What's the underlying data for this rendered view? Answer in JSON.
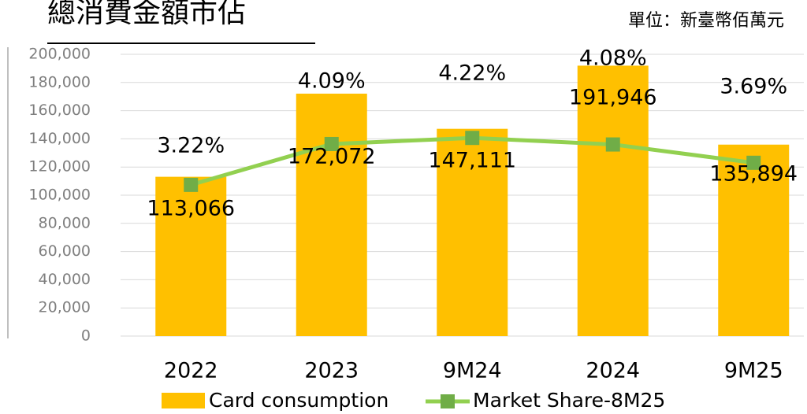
{
  "chart_data": {
    "type": "bar",
    "title": "總消費金額市佔",
    "subtitle": "單位：新臺幣佰萬元",
    "categories": [
      "2022",
      "2023",
      "9M24",
      "2024",
      "9M25"
    ],
    "series": [
      {
        "name": "Card consumption",
        "color": "#ffc000",
        "values": [
          113066,
          172072,
          147111,
          191946,
          135894
        ],
        "value_labels": [
          "113,066",
          "172,072",
          "147,111",
          "191,946",
          "135,894"
        ]
      },
      {
        "name": "Market Share-8M25",
        "type": "line",
        "axis": "y2",
        "color": "#92d050",
        "marker_color": "#70ad47",
        "values": [
          3.22,
          4.09,
          4.22,
          4.08,
          3.69
        ],
        "value_labels": [
          "3.22%",
          "4.09%",
          "4.22%",
          "4.08%",
          "3.69%"
        ]
      }
    ],
    "ylim": [
      0,
      200000
    ],
    "yticks": [
      0,
      {
        "value": 20000,
        "label": "20,000"
      },
      {
        "value": 40000,
        "label": "40,000"
      },
      {
        "value": 60000,
        "label": "60,000"
      },
      {
        "value": 80000,
        "label": "80,000"
      },
      {
        "value": 100000,
        "label": "100,000"
      },
      {
        "value": 120000,
        "label": "120,000"
      },
      {
        "value": 140000,
        "label": "140,000"
      },
      {
        "value": 160000,
        "label": "160,000"
      },
      {
        "value": 180000,
        "label": "180,000"
      },
      {
        "value": 200000,
        "label": "200,000"
      }
    ],
    "y2lim": [
      0,
      6
    ],
    "grid": true,
    "legend": "bottom"
  }
}
